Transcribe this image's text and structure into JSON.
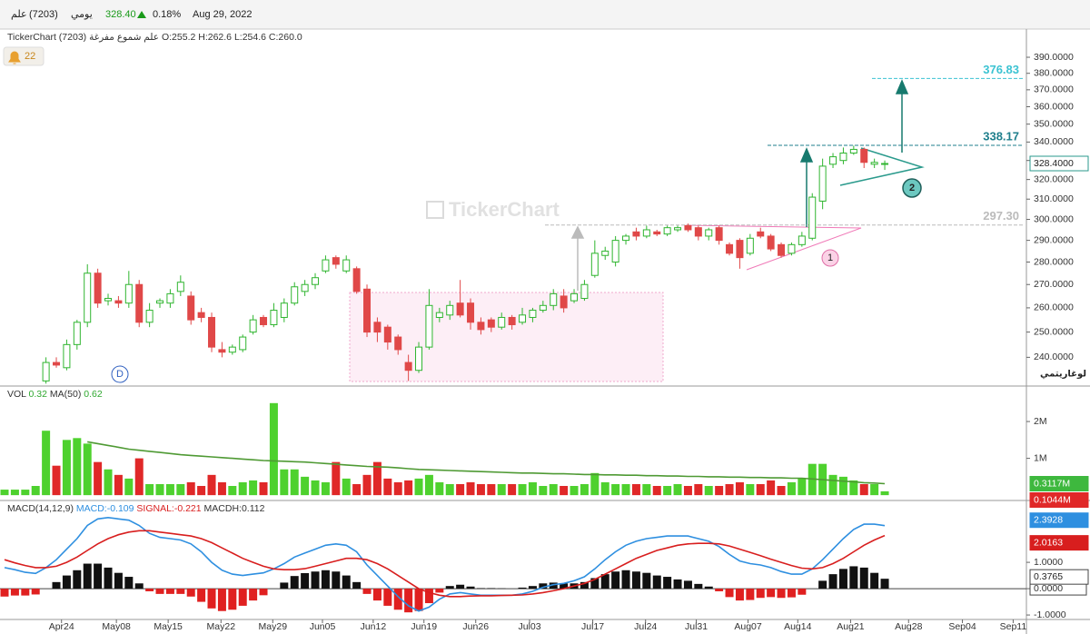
{
  "header": {
    "name": "علم",
    "code": "(7203)",
    "period": "يومي",
    "price": "328.40",
    "change": "0.18%",
    "date": "Aug 29, 2022"
  },
  "legend": {
    "source": "TickerChart",
    "name": "علم شموع مفرغة (7203)",
    "ohlc": "O:255.2  H:262.6  L:254.6  C:260.0"
  },
  "alerts": "22",
  "watermark": "TickerChart",
  "chart_data": [
    {
      "type": "candlestick",
      "up_color": "#2fb52f",
      "down_color": "#e04848",
      "open": [
        null,
        null,
        null,
        null,
        231,
        238,
        236,
        245,
        254,
        275,
        263,
        263,
        262,
        270,
        254,
        262,
        262,
        267,
        265,
        258,
        256,
        243,
        242,
        243,
        250,
        256,
        253,
        256,
        262,
        267,
        270,
        276,
        282,
        276,
        277,
        268,
        254,
        252,
        248,
        238,
        235,
        244,
        256,
        257,
        262,
        262,
        254,
        255,
        252,
        256,
        254,
        256,
        259,
        261,
        265,
        263,
        264,
        274,
        283,
        280,
        290,
        294,
        292,
        294,
        293,
        295,
        297,
        296,
        292,
        296,
        288,
        290,
        284,
        294,
        292,
        288,
        284,
        288,
        291,
        309,
        328,
        330,
        334,
        336,
        328,
        328
      ],
      "high": [
        null,
        null,
        null,
        null,
        240,
        240,
        247,
        255,
        279,
        277,
        266,
        265,
        276,
        272,
        262,
        264,
        268,
        274,
        267,
        260,
        258,
        246,
        245,
        249,
        257,
        257,
        262,
        264,
        271,
        272,
        275,
        283,
        283,
        283,
        278,
        270,
        256,
        253,
        249,
        241,
        246,
        268,
        260,
        263,
        272,
        264,
        256,
        256,
        258,
        257,
        260,
        260,
        263,
        268,
        268,
        268,
        272,
        290,
        287,
        292,
        293,
        296,
        297,
        295,
        297,
        297,
        298,
        297,
        296,
        297,
        289,
        291,
        293,
        296,
        293,
        289,
        289,
        294,
        313,
        331,
        334,
        337,
        338,
        337,
        331,
        330
      ],
      "low": [
        null,
        null,
        null,
        null,
        230,
        236,
        235,
        243,
        252,
        260,
        261,
        260,
        260,
        252,
        252,
        260,
        260,
        265,
        253,
        254,
        242,
        240,
        241,
        242,
        249,
        252,
        252,
        254,
        261,
        265,
        268,
        275,
        277,
        275,
        266,
        248,
        246,
        243,
        241,
        231,
        234,
        243,
        254,
        255,
        256,
        251,
        249,
        250,
        251,
        251,
        253,
        254,
        258,
        259,
        258,
        262,
        263,
        273,
        281,
        278,
        288,
        290,
        291,
        292,
        292,
        294,
        294,
        290,
        290,
        288,
        283,
        277,
        283,
        291,
        285,
        282,
        283,
        287,
        290,
        305,
        326,
        328,
        333,
        326,
        326,
        325
      ],
      "close": [
        null,
        null,
        null,
        null,
        238,
        237,
        245,
        254,
        275,
        262,
        264,
        262,
        270,
        254,
        259,
        263,
        266,
        271,
        255,
        256,
        244,
        242,
        244,
        248,
        255,
        253,
        259,
        262,
        269,
        270,
        273,
        281,
        279,
        281,
        267,
        250,
        250,
        246,
        243,
        235,
        244,
        261,
        258,
        261,
        257,
        254,
        251,
        252,
        256,
        253,
        257,
        259,
        261,
        266,
        260,
        266,
        270,
        284,
        285,
        290,
        292,
        292,
        295,
        293,
        296,
        296,
        295,
        292,
        295,
        290,
        284,
        282,
        291,
        292,
        286,
        283,
        288,
        292,
        311,
        327,
        332,
        334,
        336,
        329,
        329,
        328.4
      ],
      "xlim": [
        -0.44,
        98.68
      ],
      "xticks": [
        {
          "value": 5.5,
          "label": "Apr24"
        },
        {
          "value": 10.8,
          "label": "May08"
        },
        {
          "value": 15.8,
          "label": "May15"
        },
        {
          "value": 20.9,
          "label": "May22"
        },
        {
          "value": 25.9,
          "label": "May29"
        },
        {
          "value": 30.7,
          "label": "Jun05"
        },
        {
          "value": 35.6,
          "label": "Jun12"
        },
        {
          "value": 40.5,
          "label": "Jun19"
        },
        {
          "value": 45.5,
          "label": "Jun26"
        },
        {
          "value": 50.7,
          "label": "Jul03"
        },
        {
          "value": 56.8,
          "label": "Jul17"
        },
        {
          "value": 61.9,
          "label": "Jul24"
        },
        {
          "value": 66.8,
          "label": "Jul31"
        },
        {
          "value": 71.8,
          "label": "Aug07"
        },
        {
          "value": 76.6,
          "label": "Aug14"
        },
        {
          "value": 81.7,
          "label": "Aug21"
        },
        {
          "value": 87.3,
          "label": "Aug28"
        },
        {
          "value": 92.5,
          "label": "Sep04"
        },
        {
          "value": 97.4,
          "label": "Sep11"
        }
      ],
      "ylim": [
        229.1,
        408.2
      ],
      "log_scale": true,
      "yticks": [
        {
          "value": 240,
          "label": "240.0000"
        },
        {
          "value": 250,
          "label": "250.0000"
        },
        {
          "value": 260,
          "label": "260.0000"
        },
        {
          "value": 270,
          "label": "270.0000"
        },
        {
          "value": 280,
          "label": "280.0000"
        },
        {
          "value": 290,
          "label": "290.0000"
        },
        {
          "value": 300,
          "label": "300.0000"
        },
        {
          "value": 310,
          "label": "310.0000"
        },
        {
          "value": 320,
          "label": "320.0000"
        },
        {
          "value": 330,
          "label": "330.0000"
        },
        {
          "value": 340,
          "label": "340.0000"
        },
        {
          "value": 350,
          "label": "350.0000"
        },
        {
          "value": 360,
          "label": "360.0000"
        },
        {
          "value": 370,
          "label": "370.0000"
        },
        {
          "value": 380,
          "label": "380.0000"
        },
        {
          "value": 390,
          "label": "390.0000"
        }
      ],
      "scale_label": "لوغاريتمي",
      "last_price": {
        "value": 328.4,
        "label": "328.4000"
      },
      "levels": [
        {
          "value": 376.83,
          "label": "376.83",
          "color": "#3cc3d2"
        },
        {
          "value": 338.17,
          "label": "338.17",
          "color": "#1f7f8c"
        },
        {
          "value": 297.3,
          "label": "297.30",
          "color": "#bbbbbb"
        }
      ],
      "annotations": [
        "D",
        "1",
        "2"
      ]
    },
    {
      "type": "bar",
      "title": "VOL",
      "up_color": "#4ed12e",
      "down_color": "#e02828",
      "ylim": [
        -0.12,
        2.89
      ],
      "yticks": [
        {
          "value": 1,
          "label": "1M"
        },
        {
          "value": 2,
          "label": "2M"
        }
      ],
      "series": [
        {
          "name": "VOL",
          "legend_value": "0.32",
          "last_label": "0.1044M",
          "color": "#e02828",
          "values": [
            0.15,
            0.15,
            0.15,
            0.25,
            1.75,
            0.8,
            1.5,
            1.55,
            1.4,
            0.9,
            0.7,
            0.55,
            0.45,
            1.0,
            0.3,
            0.3,
            0.3,
            0.3,
            0.35,
            0.25,
            0.55,
            0.35,
            0.25,
            0.35,
            0.4,
            0.35,
            2.5,
            0.7,
            0.7,
            0.5,
            0.4,
            0.35,
            0.9,
            0.45,
            0.3,
            0.55,
            0.9,
            0.45,
            0.35,
            0.4,
            0.45,
            0.55,
            0.35,
            0.3,
            0.3,
            0.35,
            0.3,
            0.3,
            0.3,
            0.3,
            0.3,
            0.35,
            0.25,
            0.3,
            0.25,
            0.25,
            0.3,
            0.6,
            0.35,
            0.3,
            0.3,
            0.3,
            0.3,
            0.25,
            0.25,
            0.3,
            0.25,
            0.3,
            0.25,
            0.25,
            0.3,
            0.35,
            0.3,
            0.3,
            0.4,
            0.25,
            0.35,
            0.45,
            0.85,
            0.85,
            0.55,
            0.5,
            0.4,
            0.3,
            0.3,
            0.1044
          ]
        },
        {
          "name": "MA(50)",
          "legend_value": "0.62",
          "last_label": "0.3117M",
          "color": "#4f9a34",
          "values": [
            null,
            null,
            null,
            null,
            null,
            null,
            null,
            null,
            1.45,
            1.4,
            1.35,
            1.3,
            1.25,
            1.22,
            1.19,
            1.16,
            1.13,
            1.1,
            1.08,
            1.06,
            1.04,
            1.02,
            1.0,
            0.98,
            0.96,
            0.94,
            0.93,
            0.92,
            0.91,
            0.9,
            0.88,
            0.86,
            0.84,
            0.82,
            0.8,
            0.78,
            0.77,
            0.76,
            0.74,
            0.72,
            0.7,
            0.69,
            0.68,
            0.67,
            0.66,
            0.65,
            0.64,
            0.63,
            0.62,
            0.61,
            0.6,
            0.6,
            0.59,
            0.58,
            0.58,
            0.57,
            0.56,
            0.56,
            0.55,
            0.55,
            0.54,
            0.54,
            0.53,
            0.53,
            0.52,
            0.52,
            0.51,
            0.51,
            0.5,
            0.5,
            0.49,
            0.49,
            0.48,
            0.48,
            0.47,
            0.47,
            0.46,
            0.46,
            0.44,
            0.42,
            0.4,
            0.38,
            0.36,
            0.34,
            0.33,
            0.3117
          ]
        }
      ]
    },
    {
      "type": "macd",
      "title": "MACD(14,12,9)",
      "ylim": [
        -1.17,
        3.28
      ],
      "yticks": [
        {
          "value": -1,
          "label": "-1.0000"
        },
        {
          "value": 0,
          "label": "0.0000"
        },
        {
          "value": 1,
          "label": "1.0000"
        }
      ],
      "series": [
        {
          "name": "MACD",
          "legend": "MACD:-0.109",
          "color": "#2e8fe0",
          "last_label": "2.3928",
          "values": [
            0.8,
            0.72,
            0.62,
            0.58,
            0.8,
            1.1,
            1.5,
            1.9,
            2.4,
            2.65,
            2.7,
            2.65,
            2.6,
            2.4,
            2.1,
            1.95,
            1.9,
            1.85,
            1.7,
            1.4,
            1.0,
            0.7,
            0.55,
            0.5,
            0.55,
            0.6,
            0.75,
            0.95,
            1.2,
            1.35,
            1.5,
            1.65,
            1.7,
            1.65,
            1.4,
            0.9,
            0.5,
            0.1,
            -0.3,
            -0.65,
            -0.85,
            -0.7,
            -0.4,
            -0.2,
            -0.15,
            -0.2,
            -0.25,
            -0.25,
            -0.25,
            -0.25,
            -0.2,
            -0.1,
            0.05,
            0.15,
            0.2,
            0.3,
            0.45,
            0.75,
            1.1,
            1.4,
            1.65,
            1.8,
            1.9,
            1.95,
            2.0,
            2.0,
            2.0,
            1.9,
            1.8,
            1.6,
            1.3,
            1.05,
            0.95,
            0.9,
            0.8,
            0.65,
            0.55,
            0.55,
            0.75,
            1.1,
            1.5,
            1.9,
            2.25,
            2.45,
            2.45,
            2.3928
          ]
        },
        {
          "name": "SIGNAL",
          "legend": "SIGNAL:-0.221",
          "color": "#d81e1e",
          "last_label": "2.0163",
          "values": [
            1.1,
            0.98,
            0.88,
            0.8,
            0.8,
            0.85,
            1.0,
            1.2,
            1.45,
            1.7,
            1.9,
            2.05,
            2.15,
            2.2,
            2.2,
            2.15,
            2.1,
            2.05,
            2.0,
            1.9,
            1.75,
            1.55,
            1.35,
            1.15,
            1.0,
            0.85,
            0.75,
            0.72,
            0.72,
            0.76,
            0.85,
            0.95,
            1.05,
            1.15,
            1.15,
            1.1,
            0.95,
            0.75,
            0.5,
            0.25,
            0.0,
            -0.15,
            -0.25,
            -0.3,
            -0.3,
            -0.28,
            -0.27,
            -0.27,
            -0.26,
            -0.25,
            -0.24,
            -0.2,
            -0.15,
            -0.08,
            0.0,
            0.1,
            0.2,
            0.35,
            0.55,
            0.75,
            0.95,
            1.15,
            1.3,
            1.45,
            1.55,
            1.65,
            1.7,
            1.72,
            1.72,
            1.7,
            1.62,
            1.5,
            1.38,
            1.25,
            1.12,
            1.0,
            0.88,
            0.78,
            0.75,
            0.8,
            0.95,
            1.15,
            1.4,
            1.65,
            1.85,
            2.0163
          ]
        },
        {
          "name": "MACDH",
          "legend": "MACDH:0.112",
          "color": "#111111",
          "neg_color": "#e02020",
          "last_label": "0.3765",
          "values": [
            -0.3,
            -0.26,
            -0.26,
            -0.22,
            0,
            0.25,
            0.5,
            0.7,
            0.95,
            0.95,
            0.8,
            0.6,
            0.45,
            0.2,
            -0.1,
            -0.2,
            -0.2,
            -0.2,
            -0.3,
            -0.5,
            -0.75,
            -0.85,
            -0.8,
            -0.65,
            -0.45,
            -0.25,
            0,
            0.23,
            0.48,
            0.59,
            0.65,
            0.7,
            0.65,
            0.5,
            0.25,
            -0.2,
            -0.45,
            -0.65,
            -0.8,
            -0.9,
            -0.85,
            -0.55,
            -0.15,
            0.1,
            0.15,
            0.08,
            0.02,
            0.02,
            0.01,
            0,
            0.04,
            0.1,
            0.2,
            0.23,
            0.2,
            0.2,
            0.25,
            0.4,
            0.55,
            0.65,
            0.7,
            0.65,
            0.6,
            0.5,
            0.45,
            0.35,
            0.3,
            0.18,
            0.08,
            -0.1,
            -0.32,
            -0.45,
            -0.43,
            -0.35,
            -0.32,
            -0.35,
            -0.33,
            -0.23,
            0,
            0.3,
            0.55,
            0.75,
            0.85,
            0.8,
            0.6,
            0.3765
          ]
        }
      ]
    }
  ]
}
